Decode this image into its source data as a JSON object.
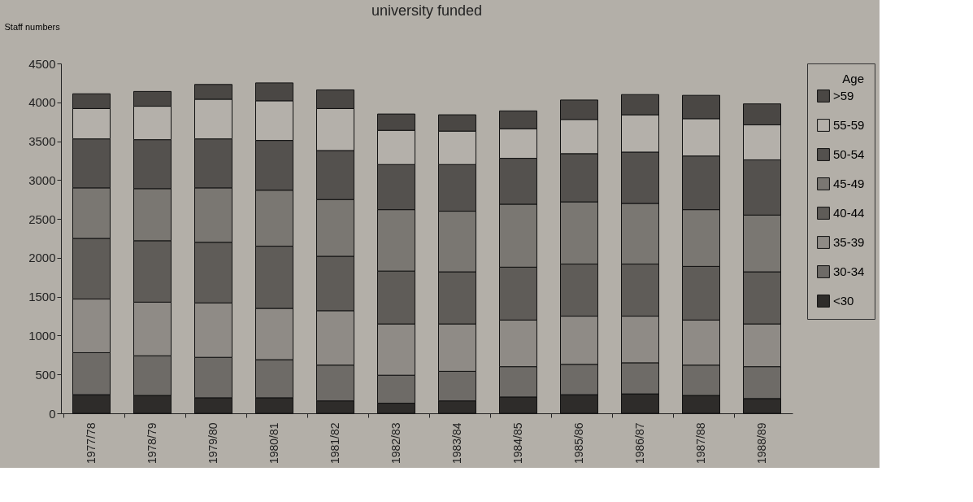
{
  "chart_data": {
    "type": "bar",
    "stacked": true,
    "title": "university funded",
    "ylabel": "Staff numbers",
    "legend_title": "Age",
    "legend": "right",
    "grid": false,
    "categories": [
      "1977/78",
      "1978/79",
      "1979/80",
      "1980/81",
      "1981/82",
      "1982/83",
      "1983/84",
      "1984/85",
      "1985/86",
      "1986/87",
      "1987/88",
      "1988/89"
    ],
    "ylim": [
      0,
      4500
    ],
    "yticks": [
      0,
      500,
      1000,
      1500,
      2000,
      2500,
      3000,
      3500,
      4000,
      4500
    ],
    "series": [
      {
        "name": "<30",
        "color": "#2e2c2a",
        "values": [
          240,
          230,
          200,
          200,
          160,
          130,
          160,
          210,
          240,
          250,
          230,
          190
        ]
      },
      {
        "name": "30-34",
        "color": "#6e6b67",
        "values": [
          540,
          510,
          520,
          490,
          460,
          360,
          380,
          390,
          390,
          400,
          390,
          410
        ]
      },
      {
        "name": "35-39",
        "color": "#8f8b86",
        "values": [
          690,
          690,
          700,
          660,
          700,
          660,
          610,
          600,
          620,
          600,
          580,
          550
        ]
      },
      {
        "name": "40-44",
        "color": "#5f5c58",
        "values": [
          780,
          790,
          780,
          800,
          700,
          680,
          670,
          680,
          670,
          670,
          690,
          670
        ]
      },
      {
        "name": "45-49",
        "color": "#7a7772",
        "values": [
          650,
          670,
          700,
          720,
          730,
          790,
          780,
          810,
          800,
          780,
          730,
          730
        ]
      },
      {
        "name": "50-54",
        "color": "#54514e",
        "values": [
          630,
          630,
          630,
          640,
          630,
          580,
          600,
          590,
          620,
          660,
          690,
          710
        ]
      },
      {
        "name": "55-59",
        "color": "#b4b0aa",
        "values": [
          390,
          430,
          510,
          510,
          540,
          440,
          430,
          380,
          440,
          480,
          480,
          450
        ]
      },
      {
        "name": ">59",
        "color": "#4a4744",
        "values": [
          190,
          190,
          190,
          230,
          240,
          210,
          210,
          230,
          250,
          260,
          300,
          270
        ]
      }
    ]
  }
}
